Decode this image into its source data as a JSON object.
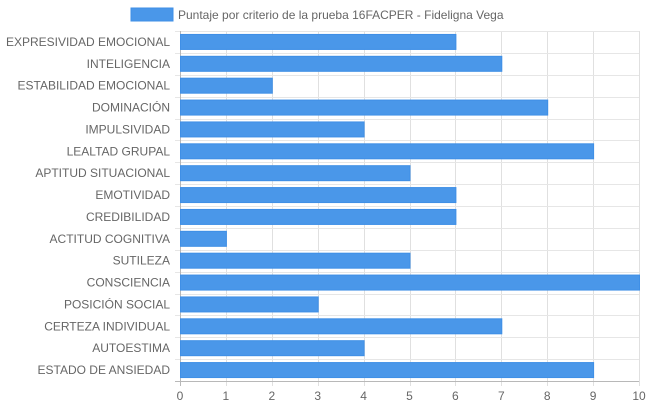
{
  "chart_data": {
    "type": "bar",
    "orientation": "horizontal",
    "categories": [
      "EXPRESIVIDAD EMOCIONAL",
      "INTELIGENCIA",
      "ESTABILIDAD EMOCIONAL",
      "DOMINACIÓN",
      "IMPULSIVIDAD",
      "LEALTAD GRUPAL",
      "APTITUD SITUACIONAL",
      "EMOTIVIDAD",
      "CREDIBILIDAD",
      "ACTITUD COGNITIVA",
      "SUTILEZA",
      "CONSCIENCIA",
      "POSICIÓN SOCIAL",
      "CERTEZA INDIVIDUAL",
      "AUTOESTIMA",
      "ESTADO DE ANSIEDAD"
    ],
    "series": [
      {
        "name": "Puntaje por criterio de la prueba 16FACPER - Fideligna Vega",
        "values": [
          6,
          7,
          2,
          8,
          4,
          9,
          5,
          6,
          6,
          1,
          5,
          10,
          3,
          7,
          4,
          9
        ],
        "color": "#4a97e9",
        "border_color": "#3f8fe6"
      }
    ],
    "xlim": [
      0,
      10
    ],
    "xticks": [
      0,
      1,
      2,
      3,
      4,
      5,
      6,
      7,
      8,
      9,
      10
    ],
    "grid": true,
    "legend_position": "top"
  }
}
